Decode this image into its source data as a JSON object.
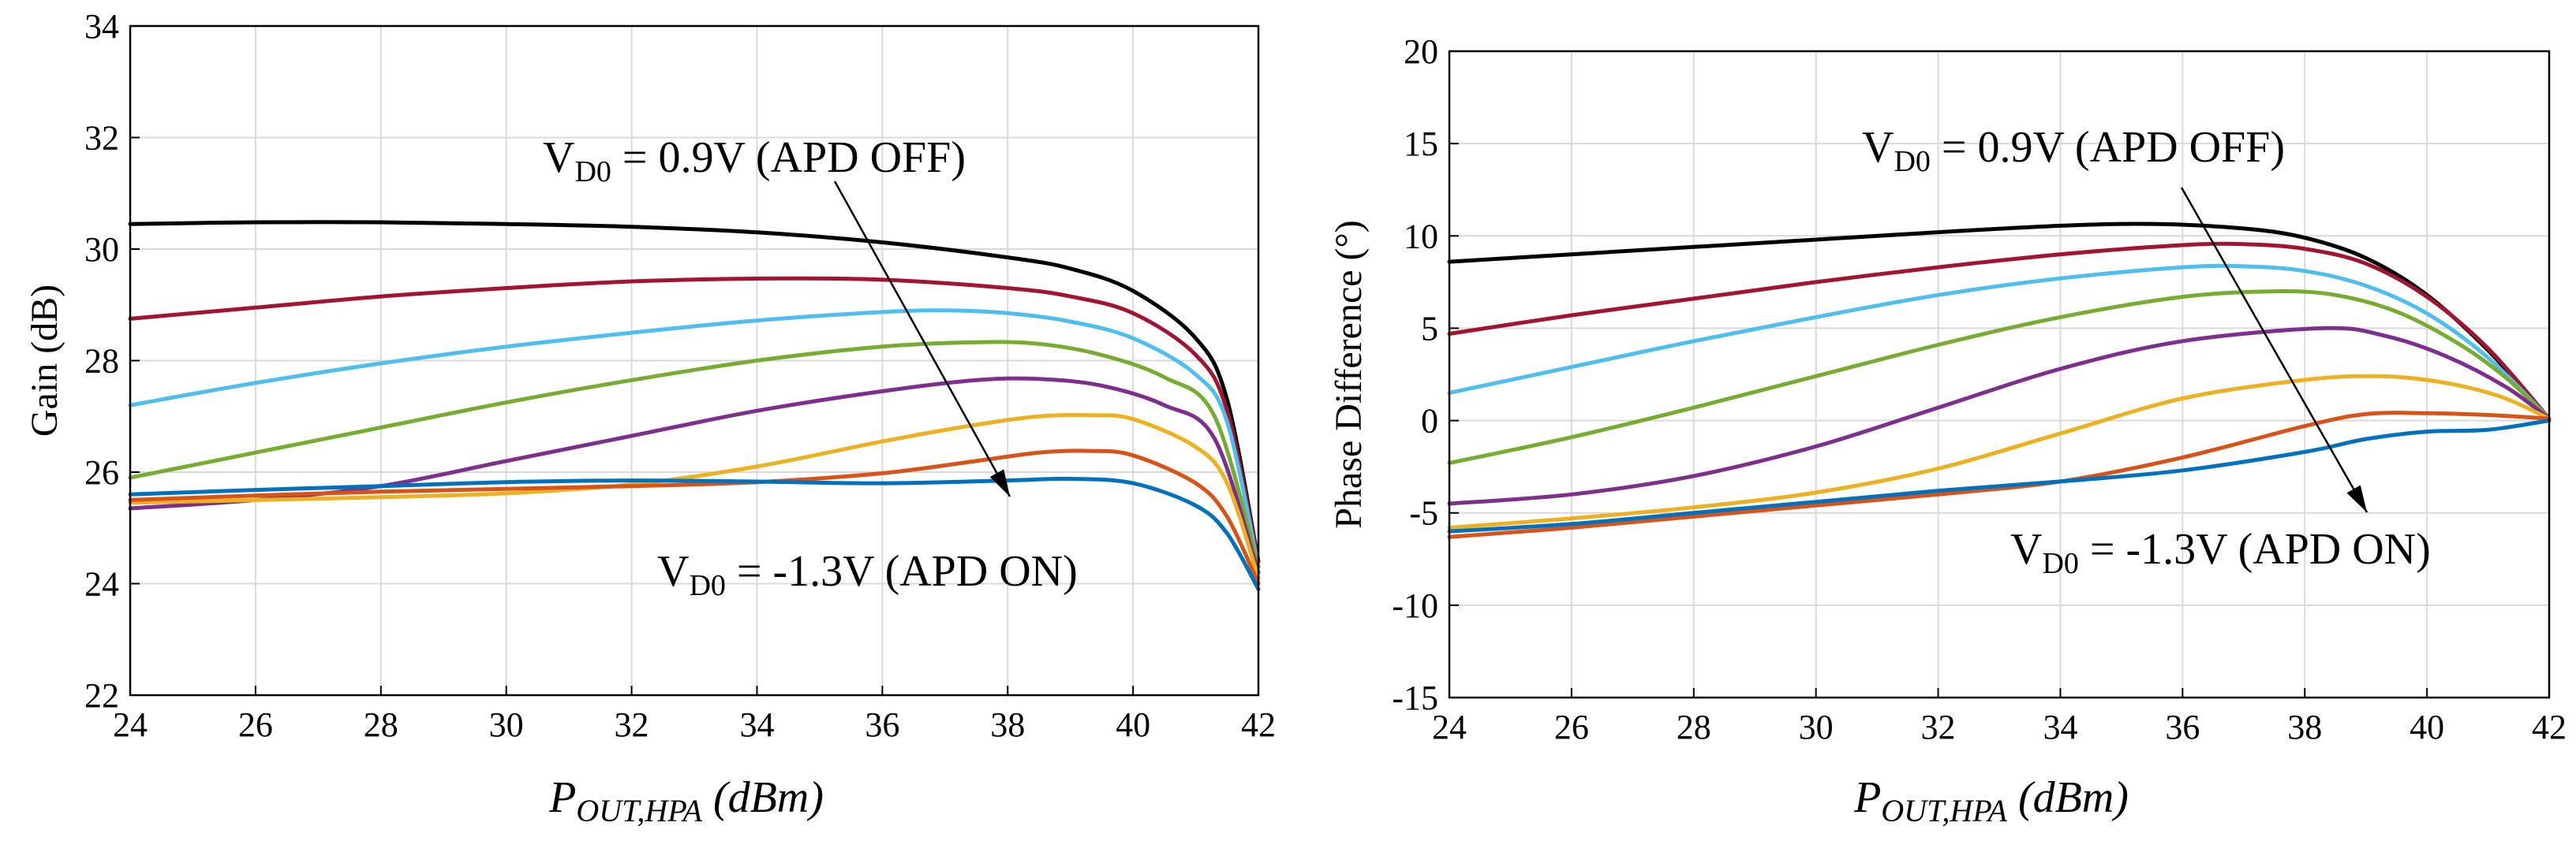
{
  "chart_data": [
    {
      "type": "line",
      "ylabel": "Gain (dB)",
      "xlabel": {
        "main": "P",
        "sub": "OUT,HPA",
        "rest": " (dBm)"
      },
      "xlim": [
        24,
        42
      ],
      "ylim": [
        22,
        34
      ],
      "xticks": [
        "24",
        "26",
        "28",
        "30",
        "32",
        "34",
        "36",
        "38",
        "40",
        "42"
      ],
      "yticks": [
        "22",
        "24",
        "26",
        "28",
        "30",
        "32",
        "34"
      ],
      "grid": true,
      "annotations": [
        {
          "main": "V",
          "sub": "D0",
          "rest": " = 0.9V (APD OFF)"
        },
        {
          "main": "V",
          "sub": "D0",
          "rest": " = -1.3V (APD ON)"
        }
      ],
      "series": [
        {
          "color": "#000000",
          "x": [
            24,
            26,
            28,
            30,
            32,
            34,
            36,
            38,
            39,
            40,
            41,
            41.5,
            42
          ],
          "y": [
            30.45,
            30.48,
            30.48,
            30.45,
            30.4,
            30.3,
            30.12,
            29.85,
            29.65,
            29.25,
            28.4,
            27.3,
            24.4
          ]
        },
        {
          "color": "#a2142f",
          "x": [
            24,
            26,
            28,
            30,
            32,
            34,
            36,
            38,
            39,
            40,
            41,
            41.5,
            42
          ],
          "y": [
            28.75,
            28.95,
            29.15,
            29.3,
            29.42,
            29.47,
            29.45,
            29.3,
            29.15,
            28.85,
            28.1,
            27.1,
            24.4
          ]
        },
        {
          "color": "#4dbeee",
          "x": [
            24,
            26,
            28,
            30,
            32,
            34,
            36,
            37,
            38,
            39,
            40,
            41,
            41.5,
            42
          ],
          "y": [
            27.2,
            27.6,
            27.95,
            28.25,
            28.5,
            28.72,
            28.87,
            28.9,
            28.85,
            28.7,
            28.4,
            27.75,
            26.9,
            24.3
          ]
        },
        {
          "color": "#77ac30",
          "x": [
            24,
            26,
            28,
            30,
            32,
            34,
            36,
            37.5,
            38.5,
            39.5,
            40.5,
            41.3,
            42
          ],
          "y": [
            25.9,
            26.35,
            26.8,
            27.25,
            27.65,
            28.0,
            28.25,
            28.33,
            28.3,
            28.1,
            27.7,
            27.0,
            24.3
          ]
        },
        {
          "color": "#7e2f8e",
          "x": [
            24,
            26,
            28,
            30,
            32,
            34,
            36,
            37.5,
            38.5,
            39.5,
            40.5,
            41.3,
            42
          ],
          "y": [
            25.35,
            25.5,
            25.75,
            26.2,
            26.65,
            27.1,
            27.45,
            27.65,
            27.67,
            27.55,
            27.2,
            26.6,
            24.2
          ]
        },
        {
          "color": "#edb120",
          "x": [
            24,
            26,
            28,
            30,
            32,
            34,
            36,
            37.5,
            38.5,
            39.3,
            40,
            41,
            41.5,
            42
          ],
          "y": [
            25.45,
            25.5,
            25.55,
            25.62,
            25.78,
            26.1,
            26.55,
            26.85,
            27.0,
            27.02,
            26.95,
            26.45,
            25.8,
            24.1
          ]
        },
        {
          "color": "#d95319",
          "x": [
            24,
            26,
            28,
            30,
            32,
            34,
            36,
            37.5,
            38.5,
            39.3,
            40,
            41,
            41.5,
            42
          ],
          "y": [
            25.5,
            25.58,
            25.65,
            25.7,
            25.75,
            25.82,
            25.98,
            26.2,
            26.35,
            26.38,
            26.3,
            25.8,
            25.2,
            24.0
          ]
        },
        {
          "color": "#0072bd",
          "x": [
            24,
            26,
            28,
            30,
            32,
            34,
            36,
            38,
            39,
            40,
            41,
            41.5,
            42
          ],
          "y": [
            25.6,
            25.68,
            25.75,
            25.82,
            25.85,
            25.83,
            25.8,
            25.85,
            25.88,
            25.8,
            25.4,
            24.9,
            23.9
          ]
        }
      ]
    },
    {
      "type": "line",
      "ylabel": "Phase Difference (°)",
      "xlabel": {
        "main": "P",
        "sub": "OUT,HPA",
        "rest": " (dBm)"
      },
      "xlim": [
        24,
        42
      ],
      "ylim": [
        -15,
        20
      ],
      "xticks": [
        "24",
        "26",
        "28",
        "30",
        "32",
        "34",
        "36",
        "38",
        "40",
        "42"
      ],
      "yticks": [
        "-15",
        "-10",
        "-5",
        "0",
        "5",
        "10",
        "15",
        "20"
      ],
      "grid": true,
      "annotations": [
        {
          "main": "V",
          "sub": "D0",
          "rest": " = 0.9V (APD OFF)"
        },
        {
          "main": "V",
          "sub": "D0",
          "rest": " = -1.3V (APD ON)"
        }
      ],
      "series": [
        {
          "color": "#000000",
          "x": [
            24,
            26,
            28,
            30,
            32,
            34,
            35.5,
            37,
            38,
            39,
            40,
            41,
            42
          ],
          "y": [
            8.6,
            9.0,
            9.4,
            9.8,
            10.2,
            10.55,
            10.65,
            10.4,
            9.9,
            8.8,
            6.8,
            3.8,
            0.1
          ]
        },
        {
          "color": "#a2142f",
          "x": [
            24,
            26,
            28,
            30,
            32,
            34,
            36,
            37,
            38,
            39,
            40,
            41,
            42
          ],
          "y": [
            4.7,
            5.7,
            6.6,
            7.5,
            8.3,
            9.0,
            9.5,
            9.55,
            9.3,
            8.5,
            6.7,
            3.9,
            0.1
          ]
        },
        {
          "color": "#4dbeee",
          "x": [
            24,
            26,
            28,
            30,
            32,
            34,
            36,
            37,
            38,
            39,
            40,
            41,
            42
          ],
          "y": [
            1.5,
            2.9,
            4.3,
            5.6,
            6.8,
            7.7,
            8.3,
            8.35,
            8.1,
            7.3,
            5.8,
            3.4,
            0.1
          ]
        },
        {
          "color": "#77ac30",
          "x": [
            24,
            26,
            28,
            30,
            32,
            34,
            36,
            37.5,
            38.5,
            39.5,
            40.5,
            41.3,
            42
          ],
          "y": [
            -2.3,
            -0.9,
            0.7,
            2.4,
            4.1,
            5.6,
            6.7,
            7.0,
            6.8,
            5.9,
            4.2,
            2.3,
            0.1
          ]
        },
        {
          "color": "#7e2f8e",
          "x": [
            24,
            26,
            28,
            30,
            32,
            34,
            36,
            38.3,
            39.3,
            40.3,
            41.3,
            42
          ],
          "y": [
            -4.5,
            -4.0,
            -3.0,
            -1.4,
            0.7,
            2.8,
            4.3,
            5.0,
            4.6,
            3.5,
            1.8,
            0.1
          ]
        },
        {
          "color": "#edb120",
          "x": [
            24,
            26,
            28,
            30,
            32,
            34,
            36,
            38,
            39.2,
            40.2,
            41.2,
            42
          ],
          "y": [
            -5.8,
            -5.3,
            -4.7,
            -3.9,
            -2.6,
            -0.7,
            1.2,
            2.2,
            2.4,
            2.1,
            1.3,
            0.1
          ]
        },
        {
          "color": "#d95319",
          "x": [
            24,
            26,
            28,
            30,
            32,
            34,
            36,
            38,
            39,
            40,
            41,
            42
          ],
          "y": [
            -6.3,
            -5.8,
            -5.2,
            -4.6,
            -4.0,
            -3.3,
            -2.0,
            -0.3,
            0.35,
            0.4,
            0.3,
            0.1
          ]
        },
        {
          "color": "#0072bd",
          "x": [
            24,
            26,
            28,
            30,
            32,
            34,
            36,
            38,
            39,
            40,
            41,
            42
          ],
          "y": [
            -6.0,
            -5.6,
            -5.0,
            -4.4,
            -3.8,
            -3.3,
            -2.7,
            -1.7,
            -1.0,
            -0.6,
            -0.5,
            0.0
          ]
        }
      ]
    }
  ]
}
